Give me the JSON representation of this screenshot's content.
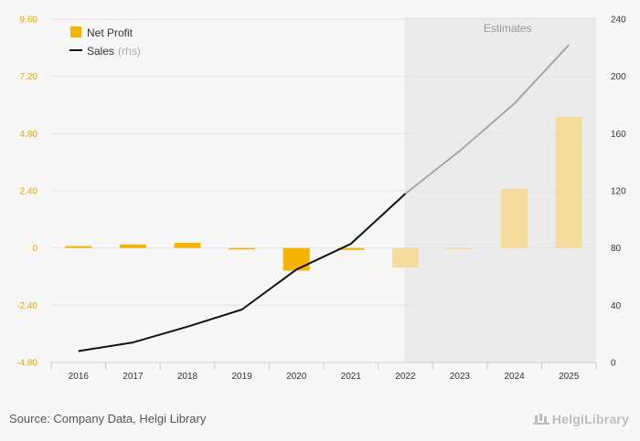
{
  "chart_data": {
    "type": "bar",
    "categories": [
      "2016",
      "2017",
      "2018",
      "2019",
      "2020",
      "2021",
      "2022",
      "2023",
      "2024",
      "2025"
    ],
    "series": [
      {
        "name": "Net Profit",
        "kind": "bar",
        "axis": "left",
        "color": "#f5b400",
        "estimate_color": "#f5dc9c",
        "values": [
          0.08,
          0.15,
          0.22,
          -0.05,
          -0.95,
          -0.08,
          -0.82,
          -0.06,
          2.48,
          5.5
        ]
      },
      {
        "name": "Sales",
        "name_suffix": "(rhs)",
        "kind": "line",
        "axis": "right",
        "color": "#111111",
        "estimate_color": "#a6a6a6",
        "values": [
          8,
          14,
          25,
          37,
          65,
          83,
          118,
          148,
          181,
          222
        ]
      }
    ],
    "estimates_label": "Estimates",
    "estimates_start_index": 6,
    "y_left": {
      "min": -4.8,
      "max": 9.6,
      "ticks": [
        "-4.80",
        "-2.40",
        "0",
        "2.40",
        "4.80",
        "7.20",
        "9.60"
      ]
    },
    "y_right": {
      "min": 0,
      "max": 240,
      "ticks": [
        "0",
        "40",
        "80",
        "120",
        "160",
        "200",
        "240"
      ]
    },
    "grid": true,
    "legend_position": "top-left"
  },
  "footer": {
    "source": "Source: Company Data, Helgi Library",
    "brand": "HelgiLibrary"
  }
}
